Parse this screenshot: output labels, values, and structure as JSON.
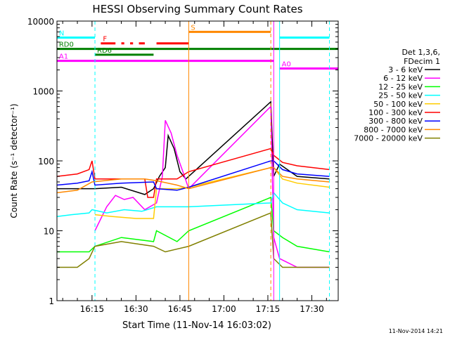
{
  "chart_data": {
    "type": "line",
    "title": "HESSI Observing Summary Count Rates",
    "xlabel": "Start Time (11-Nov-14 16:03:02)",
    "ylabel": "Count Rate (s⁻¹ detector⁻¹)",
    "yscale": "log",
    "xlim": [
      "16:03:02",
      "17:39:00"
    ],
    "ylim": [
      1,
      10000
    ],
    "x_ticks": [
      "16:15",
      "16:30",
      "16:45",
      "17:00",
      "17:15",
      "17:30"
    ],
    "y_ticks": [
      "1",
      "10",
      "100",
      "1000",
      "10000"
    ],
    "legend_header": [
      "Det 1,3,6,",
      "FDecim 1"
    ],
    "legend_position": "right",
    "footer": "11-Nov-2014 14:21",
    "grid": false,
    "series": [
      {
        "name": "3 - 6 keV",
        "color": "#000000",
        "points": [
          [
            "16:03",
            40
          ],
          [
            "16:14",
            40
          ],
          [
            "16:16",
            40
          ],
          [
            "16:25",
            42
          ],
          [
            "16:33",
            33
          ],
          [
            "16:36",
            40
          ],
          [
            "16:38",
            60
          ],
          [
            "16:40",
            80
          ],
          [
            "16:41",
            230
          ],
          [
            "16:43",
            150
          ],
          [
            "16:45",
            70
          ],
          [
            "16:47",
            55
          ],
          [
            "16:48",
            60
          ],
          [
            "17:16",
            700
          ],
          [
            "17:17",
            60
          ],
          [
            "17:19",
            90
          ],
          [
            "17:25",
            60
          ],
          [
            "17:36",
            55
          ]
        ]
      },
      {
        "name": "6 - 12 keV",
        "color": "#ff00ff",
        "points": [
          [
            "16:16",
            10
          ],
          [
            "16:20",
            22
          ],
          [
            "16:23",
            32
          ],
          [
            "16:26",
            28
          ],
          [
            "16:29",
            30
          ],
          [
            "16:33",
            20
          ],
          [
            "16:37",
            25
          ],
          [
            "16:39",
            60
          ],
          [
            "16:40",
            380
          ],
          [
            "16:42",
            250
          ],
          [
            "16:44",
            120
          ],
          [
            "16:46",
            70
          ],
          [
            "16:48",
            40
          ],
          [
            "17:16",
            600
          ],
          [
            "17:17",
            8
          ],
          [
            "17:19",
            4
          ],
          [
            "17:25",
            3
          ],
          [
            "17:36",
            3
          ]
        ]
      },
      {
        "name": "12 - 25 keV",
        "color": "#00ff00",
        "points": [
          [
            "16:03",
            5
          ],
          [
            "16:14",
            5
          ],
          [
            "16:16",
            6
          ],
          [
            "16:25",
            8
          ],
          [
            "16:36",
            7
          ],
          [
            "16:37",
            10
          ],
          [
            "16:44",
            7
          ],
          [
            "16:48",
            10
          ],
          [
            "17:16",
            30
          ],
          [
            "17:17",
            10
          ],
          [
            "17:20",
            8
          ],
          [
            "17:25",
            6
          ],
          [
            "17:36",
            5
          ]
        ]
      },
      {
        "name": "25 - 50 keV",
        "color": "#00ffff",
        "points": [
          [
            "16:03",
            16
          ],
          [
            "16:08",
            17
          ],
          [
            "16:14",
            18
          ],
          [
            "16:15",
            20
          ],
          [
            "16:20",
            18
          ],
          [
            "16:26",
            20
          ],
          [
            "16:32",
            19
          ],
          [
            "16:37",
            22
          ],
          [
            "16:48",
            22
          ],
          [
            "17:16",
            25
          ],
          [
            "17:17",
            35
          ],
          [
            "17:20",
            25
          ],
          [
            "17:25",
            20
          ],
          [
            "17:36",
            18
          ]
        ]
      },
      {
        "name": "50 - 100 keV",
        "color": "#ffcc00",
        "points": [
          [
            "16:16",
            17
          ],
          [
            "16:22",
            16
          ],
          [
            "16:30",
            15
          ],
          [
            "16:36",
            15
          ],
          [
            "16:37",
            40
          ],
          [
            "16:44",
            40
          ],
          [
            "16:48",
            42
          ],
          [
            "17:16",
            80
          ],
          [
            "17:17",
            80
          ],
          [
            "17:20",
            55
          ],
          [
            "17:25",
            48
          ],
          [
            "17:36",
            42
          ]
        ]
      },
      {
        "name": "100 - 300 keV",
        "color": "#ff0000",
        "points": [
          [
            "16:03",
            60
          ],
          [
            "16:10",
            65
          ],
          [
            "16:14",
            75
          ],
          [
            "16:15",
            100
          ],
          [
            "16:16",
            55
          ],
          [
            "16:25",
            55
          ],
          [
            "16:33",
            55
          ],
          [
            "16:34",
            30
          ],
          [
            "16:36",
            30
          ],
          [
            "16:37",
            55
          ],
          [
            "16:44",
            55
          ],
          [
            "16:48",
            70
          ],
          [
            "17:16",
            150
          ],
          [
            "17:17",
            120
          ],
          [
            "17:20",
            95
          ],
          [
            "17:25",
            85
          ],
          [
            "17:36",
            75
          ]
        ]
      },
      {
        "name": "300 - 800 keV",
        "color": "#0000ff",
        "points": [
          [
            "16:03",
            45
          ],
          [
            "16:10",
            48
          ],
          [
            "16:14",
            52
          ],
          [
            "16:15",
            70
          ],
          [
            "16:16",
            45
          ],
          [
            "16:25",
            48
          ],
          [
            "16:36",
            50
          ],
          [
            "16:37",
            40
          ],
          [
            "16:44",
            38
          ],
          [
            "16:48",
            42
          ],
          [
            "17:16",
            100
          ],
          [
            "17:17",
            100
          ],
          [
            "17:20",
            75
          ],
          [
            "17:25",
            65
          ],
          [
            "17:36",
            60
          ]
        ]
      },
      {
        "name": "800 - 7000 keV",
        "color": "#ff8800",
        "points": [
          [
            "16:03",
            35
          ],
          [
            "16:10",
            38
          ],
          [
            "16:15",
            50
          ],
          [
            "16:25",
            55
          ],
          [
            "16:33",
            55
          ],
          [
            "16:37",
            52
          ],
          [
            "16:44",
            45
          ],
          [
            "16:48",
            40
          ],
          [
            "17:16",
            80
          ],
          [
            "17:17",
            80
          ],
          [
            "17:20",
            60
          ],
          [
            "17:25",
            55
          ],
          [
            "17:36",
            50
          ]
        ]
      },
      {
        "name": "7000 - 20000 keV",
        "color": "#808000",
        "points": [
          [
            "16:03",
            3
          ],
          [
            "16:10",
            3
          ],
          [
            "16:14",
            4
          ],
          [
            "16:16",
            6
          ],
          [
            "16:25",
            7
          ],
          [
            "16:36",
            6
          ],
          [
            "16:40",
            5
          ],
          [
            "16:48",
            6
          ],
          [
            "17:16",
            18
          ],
          [
            "17:17",
            4
          ],
          [
            "17:20",
            3
          ],
          [
            "17:25",
            3
          ],
          [
            "17:36",
            3
          ]
        ]
      }
    ],
    "flag_bars": [
      {
        "label": "N",
        "color": "#00ffff",
        "value": 5800,
        "segments": [
          [
            "16:03",
            "16:16"
          ],
          [
            "17:19",
            "17:36"
          ]
        ]
      },
      {
        "label": "F",
        "color": "#ff0000",
        "value": 4800,
        "segments": [
          [
            "16:18",
            "16:23"
          ],
          [
            "16:25",
            "16:26"
          ],
          [
            "16:28",
            "16:29"
          ],
          [
            "16:31",
            "16:33"
          ],
          [
            "16:37",
            "16:48"
          ]
        ]
      },
      {
        "label": "S",
        "color": "#ff8800",
        "value": 7000,
        "segments": [
          [
            "16:48",
            "17:16"
          ]
        ]
      },
      {
        "label": "RD0",
        "color": "#008000",
        "value": 4000,
        "segments": [
          [
            "16:03",
            "17:39"
          ]
        ]
      },
      {
        "label": "RD6",
        "color": "#008000",
        "value": 3300,
        "segments": [
          [
            "16:16",
            "16:36"
          ]
        ]
      },
      {
        "label": "A0",
        "color": "#ff00ff",
        "value": 2100,
        "segments": [
          [
            "17:19",
            "17:39"
          ]
        ]
      },
      {
        "label": "A1",
        "color": "#ff00ff",
        "value": 2700,
        "segments": [
          [
            "16:03",
            "17:17"
          ]
        ]
      }
    ],
    "vlines": [
      {
        "x": "16:03:02",
        "color": "#00ffff",
        "style": "solid"
      },
      {
        "x": "16:16",
        "color": "#00ffff",
        "style": "dashed"
      },
      {
        "x": "16:48",
        "color": "#ff8800",
        "style": "solid"
      },
      {
        "x": "17:16",
        "color": "#ff8800",
        "style": "dashed"
      },
      {
        "x": "17:17",
        "color": "#ff00ff",
        "style": "solid"
      },
      {
        "x": "17:19",
        "color": "#00ffff",
        "style": "solid"
      },
      {
        "x": "17:36",
        "color": "#00ffff",
        "style": "dashed"
      }
    ]
  }
}
